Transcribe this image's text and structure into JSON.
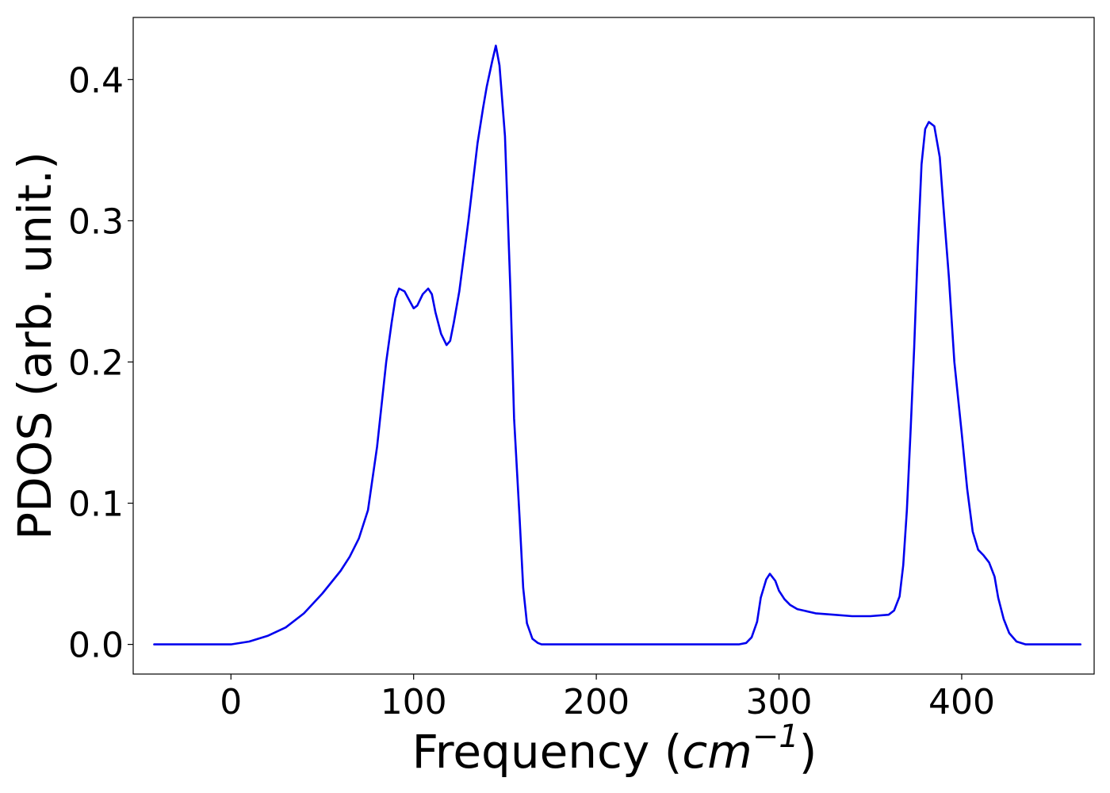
{
  "chart_data": {
    "type": "line",
    "title": "",
    "xlabel": "Frequency (",
    "xlabel_math_base": "cm",
    "xlabel_math_sup": "−1",
    "xlabel_suffix": ")",
    "ylabel": "PDOS (arb. unit.)",
    "xlim": [
      -53.5,
      472.5
    ],
    "ylim": [
      -0.021,
      0.444
    ],
    "xticks": [
      0,
      100,
      200,
      300,
      400
    ],
    "xtick_labels": [
      "0",
      "100",
      "200",
      "300",
      "400"
    ],
    "yticks": [
      0.0,
      0.1,
      0.2,
      0.3,
      0.4
    ],
    "ytick_labels": [
      "0.0",
      "0.1",
      "0.2",
      "0.3",
      "0.4"
    ],
    "grid": false,
    "legend": null,
    "series": [
      {
        "color": "#0000ee",
        "x": [
          -42,
          -20,
          0,
          10,
          20,
          30,
          40,
          50,
          60,
          65,
          70,
          75,
          80,
          85,
          88,
          90,
          92,
          95,
          100,
          102,
          105,
          108,
          110,
          112,
          115,
          118,
          120,
          122,
          125,
          130,
          135,
          138,
          140,
          143,
          145,
          147,
          150,
          153,
          155,
          158,
          160,
          162,
          165,
          168,
          170,
          175,
          200,
          250,
          278,
          282,
          285,
          288,
          290,
          293,
          295,
          298,
          300,
          303,
          306,
          310,
          320,
          330,
          340,
          350,
          360,
          363,
          366,
          368,
          370,
          372,
          374,
          376,
          378,
          380,
          382,
          385,
          388,
          390,
          393,
          396,
          400,
          403,
          406,
          409,
          412,
          415,
          418,
          420,
          423,
          426,
          430,
          435,
          440,
          465
        ],
        "y": [
          0.0,
          0.0,
          0.0,
          0.002,
          0.006,
          0.012,
          0.022,
          0.036,
          0.052,
          0.062,
          0.075,
          0.095,
          0.14,
          0.2,
          0.228,
          0.245,
          0.252,
          0.25,
          0.238,
          0.24,
          0.248,
          0.252,
          0.248,
          0.235,
          0.22,
          0.212,
          0.215,
          0.228,
          0.25,
          0.3,
          0.355,
          0.38,
          0.395,
          0.413,
          0.424,
          0.41,
          0.36,
          0.25,
          0.16,
          0.09,
          0.04,
          0.015,
          0.004,
          0.001,
          0.0,
          0.0,
          0.0,
          0.0,
          0.0,
          0.001,
          0.005,
          0.016,
          0.033,
          0.046,
          0.05,
          0.045,
          0.038,
          0.032,
          0.028,
          0.025,
          0.022,
          0.021,
          0.02,
          0.02,
          0.021,
          0.024,
          0.034,
          0.056,
          0.095,
          0.15,
          0.21,
          0.28,
          0.34,
          0.365,
          0.37,
          0.367,
          0.345,
          0.31,
          0.26,
          0.2,
          0.15,
          0.11,
          0.08,
          0.067,
          0.063,
          0.058,
          0.048,
          0.033,
          0.018,
          0.008,
          0.002,
          0.0,
          0.0,
          0.0
        ]
      }
    ]
  }
}
